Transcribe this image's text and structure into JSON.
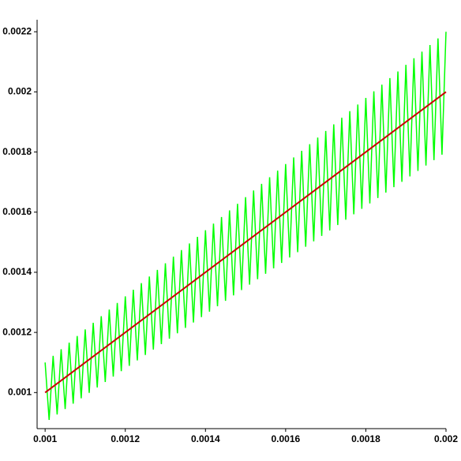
{
  "chart_data": {
    "type": "line",
    "xlim": [
      0.00098,
      0.002
    ],
    "ylim": [
      0.00088,
      0.00224
    ],
    "xticks": [
      0.001,
      0.0012,
      0.0014,
      0.0016,
      0.0018,
      0.002
    ],
    "yticks": [
      0.001,
      0.0012,
      0.0014,
      0.0016,
      0.0018,
      0.002,
      0.0022
    ],
    "series": [
      {
        "color": "#00ff00",
        "x": [
          0.001,
          0.00101,
          0.00102,
          0.00103,
          0.00104,
          0.00105,
          0.00106,
          0.00107,
          0.00108,
          0.00109,
          0.0011,
          0.00111,
          0.00112,
          0.00113,
          0.00114,
          0.00115,
          0.00116,
          0.00117,
          0.00118,
          0.00119,
          0.0012,
          0.00121,
          0.00122,
          0.00123,
          0.00124,
          0.00125,
          0.00126,
          0.00127,
          0.00128,
          0.00129,
          0.0013,
          0.00131,
          0.00132,
          0.00133,
          0.00134,
          0.00135,
          0.00136,
          0.00137,
          0.00138,
          0.00139,
          0.0014,
          0.00141,
          0.00142,
          0.00143,
          0.00144,
          0.00145,
          0.00146,
          0.00147,
          0.00148,
          0.00149,
          0.0015,
          0.00151,
          0.00152,
          0.00153,
          0.00154,
          0.00155,
          0.00156,
          0.00157,
          0.00158,
          0.00159,
          0.0016,
          0.00161,
          0.00162,
          0.00163,
          0.00164,
          0.00165,
          0.00166,
          0.00167,
          0.00168,
          0.00169,
          0.0017,
          0.00171,
          0.00172,
          0.00173,
          0.00174,
          0.00175,
          0.00176,
          0.00177,
          0.00178,
          0.00179,
          0.0018,
          0.00181,
          0.00182,
          0.00183,
          0.00184,
          0.00185,
          0.00186,
          0.00187,
          0.00188,
          0.00189,
          0.0019,
          0.00191,
          0.00192,
          0.00193,
          0.00194,
          0.00195,
          0.00196,
          0.00197,
          0.00198,
          0.00199,
          0.002
        ],
        "values": [
          0.0011,
          0.000909,
          0.001122,
          0.000927,
          0.001144,
          0.000945,
          0.001166,
          0.000963,
          0.001188,
          0.000981,
          0.00121,
          0.000999,
          0.001232,
          0.001017,
          0.001254,
          0.001035,
          0.001276,
          0.001053,
          0.001298,
          0.001071,
          0.00132,
          0.001089,
          0.001342,
          0.001107,
          0.001364,
          0.001125,
          0.001386,
          0.001143,
          0.001408,
          0.001161,
          0.00143,
          0.001179,
          0.001452,
          0.001197,
          0.001474,
          0.001215,
          0.001496,
          0.001233,
          0.001518,
          0.001251,
          0.00154,
          0.001269,
          0.001562,
          0.001287,
          0.001584,
          0.001305,
          0.001606,
          0.001323,
          0.001628,
          0.001341,
          0.00165,
          0.001359,
          0.001672,
          0.001377,
          0.001694,
          0.001395,
          0.001716,
          0.001413,
          0.001738,
          0.001431,
          0.00176,
          0.001449,
          0.001782,
          0.001467,
          0.001804,
          0.001485,
          0.001826,
          0.001503,
          0.001848,
          0.001521,
          0.00187,
          0.001539,
          0.001892,
          0.001557,
          0.001914,
          0.001575,
          0.001936,
          0.001593,
          0.001958,
          0.001611,
          0.00198,
          0.001629,
          0.002002,
          0.001647,
          0.002024,
          0.001665,
          0.002046,
          0.001683,
          0.002068,
          0.001701,
          0.00209,
          0.001719,
          0.002112,
          0.001737,
          0.002134,
          0.001755,
          0.002156,
          0.001773,
          0.002178,
          0.001791,
          0.0022
        ]
      },
      {
        "color": "#cc0000",
        "x": [
          0.001,
          0.002
        ],
        "values": [
          0.001,
          0.002
        ]
      }
    ]
  }
}
